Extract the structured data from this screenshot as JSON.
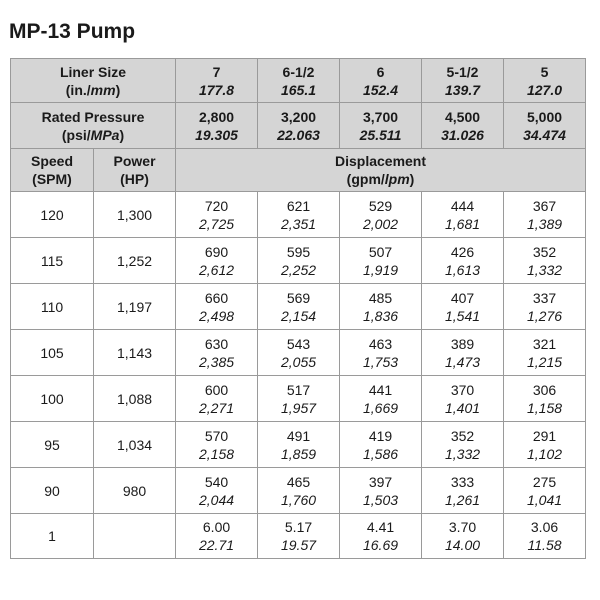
{
  "title": "MP-13 Pump",
  "header": {
    "liner_label_line1": "Liner Size",
    "liner_label_unit_a": "(in./",
    "liner_label_unit_b": "mm",
    "liner_label_unit_c": ")",
    "rated_label_line1": "Rated Pressure",
    "rated_label_unit_a": "(psi/",
    "rated_label_unit_b": "MPa",
    "rated_label_unit_c": ")",
    "speed_label_line1": "Speed",
    "speed_label_line2": "(SPM)",
    "power_label_line1": "Power",
    "power_label_line2": "(HP)",
    "displacement_label_line1": "Displacement",
    "displacement_unit_a": "(gpm/",
    "displacement_unit_b": "lpm",
    "displacement_unit_c": ")"
  },
  "liner_sizes": [
    {
      "in": "7",
      "mm": "177.8"
    },
    {
      "in": "6-1/2",
      "mm": "165.1"
    },
    {
      "in": "6",
      "mm": "152.4"
    },
    {
      "in": "5-1/2",
      "mm": "139.7"
    },
    {
      "in": "5",
      "mm": "127.0"
    }
  ],
  "rated_pressures": [
    {
      "psi": "2,800",
      "mpa": "19.305"
    },
    {
      "psi": "3,200",
      "mpa": "22.063"
    },
    {
      "psi": "3,700",
      "mpa": "25.511"
    },
    {
      "psi": "4,500",
      "mpa": "31.026"
    },
    {
      "psi": "5,000",
      "mpa": "34.474"
    }
  ],
  "rows": [
    {
      "spm": "120",
      "hp": "1,300",
      "cells": [
        {
          "gpm": "720",
          "lpm": "2,725"
        },
        {
          "gpm": "621",
          "lpm": "2,351"
        },
        {
          "gpm": "529",
          "lpm": "2,002"
        },
        {
          "gpm": "444",
          "lpm": "1,681"
        },
        {
          "gpm": "367",
          "lpm": "1,389"
        }
      ]
    },
    {
      "spm": "115",
      "hp": "1,252",
      "cells": [
        {
          "gpm": "690",
          "lpm": "2,612"
        },
        {
          "gpm": "595",
          "lpm": "2,252"
        },
        {
          "gpm": "507",
          "lpm": "1,919"
        },
        {
          "gpm": "426",
          "lpm": "1,613"
        },
        {
          "gpm": "352",
          "lpm": "1,332"
        }
      ]
    },
    {
      "spm": "110",
      "hp": "1,197",
      "cells": [
        {
          "gpm": "660",
          "lpm": "2,498"
        },
        {
          "gpm": "569",
          "lpm": "2,154"
        },
        {
          "gpm": "485",
          "lpm": "1,836"
        },
        {
          "gpm": "407",
          "lpm": "1,541"
        },
        {
          "gpm": "337",
          "lpm": "1,276"
        }
      ]
    },
    {
      "spm": "105",
      "hp": "1,143",
      "cells": [
        {
          "gpm": "630",
          "lpm": "2,385"
        },
        {
          "gpm": "543",
          "lpm": "2,055"
        },
        {
          "gpm": "463",
          "lpm": "1,753"
        },
        {
          "gpm": "389",
          "lpm": "1,473"
        },
        {
          "gpm": "321",
          "lpm": "1,215"
        }
      ]
    },
    {
      "spm": "100",
      "hp": "1,088",
      "cells": [
        {
          "gpm": "600",
          "lpm": "2,271"
        },
        {
          "gpm": "517",
          "lpm": "1,957"
        },
        {
          "gpm": "441",
          "lpm": "1,669"
        },
        {
          "gpm": "370",
          "lpm": "1,401"
        },
        {
          "gpm": "306",
          "lpm": "1,158"
        }
      ]
    },
    {
      "spm": "95",
      "hp": "1,034",
      "cells": [
        {
          "gpm": "570",
          "lpm": "2,158"
        },
        {
          "gpm": "491",
          "lpm": "1,859"
        },
        {
          "gpm": "419",
          "lpm": "1,586"
        },
        {
          "gpm": "352",
          "lpm": "1,332"
        },
        {
          "gpm": "291",
          "lpm": "1,102"
        }
      ]
    },
    {
      "spm": "90",
      "hp": "980",
      "cells": [
        {
          "gpm": "540",
          "lpm": "2,044"
        },
        {
          "gpm": "465",
          "lpm": "1,760"
        },
        {
          "gpm": "397",
          "lpm": "1,503"
        },
        {
          "gpm": "333",
          "lpm": "1,261"
        },
        {
          "gpm": "275",
          "lpm": "1,041"
        }
      ]
    },
    {
      "spm": "1",
      "hp": "",
      "cells": [
        {
          "gpm": "6.00",
          "lpm": "22.71"
        },
        {
          "gpm": "5.17",
          "lpm": "19.57"
        },
        {
          "gpm": "4.41",
          "lpm": "16.69"
        },
        {
          "gpm": "3.70",
          "lpm": "14.00"
        },
        {
          "gpm": "3.06",
          "lpm": "11.58"
        }
      ]
    }
  ],
  "colors": {
    "header_bg": "#d5d5d5",
    "border": "#9a9a9a",
    "text": "#1a1a1a"
  }
}
